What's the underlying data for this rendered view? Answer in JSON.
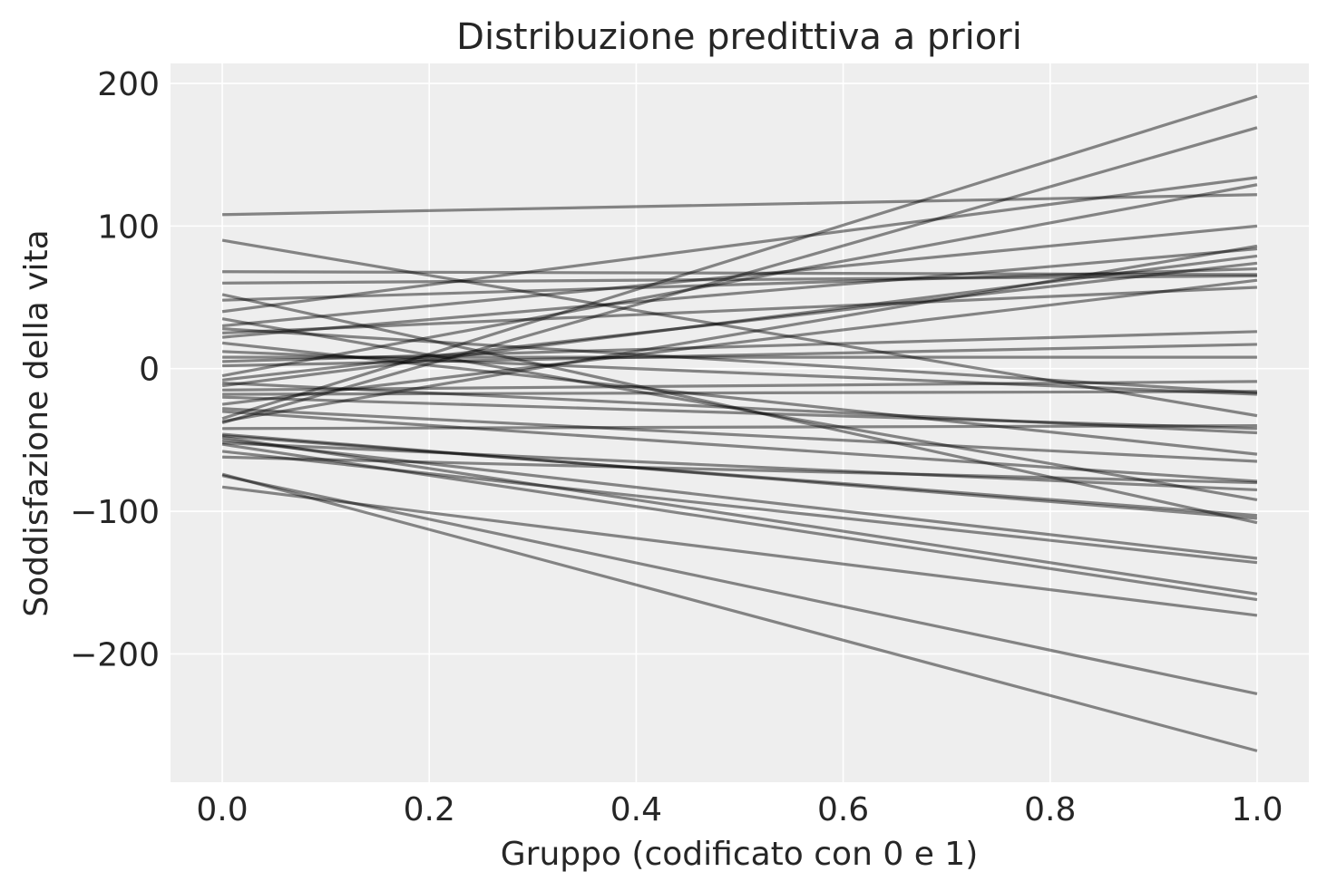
{
  "chart_data": {
    "type": "line",
    "title": "Distribuzione predittiva a priori",
    "xlabel": "Gruppo (codificato con 0 e 1)",
    "ylabel": "Soddisfazione della vita",
    "xlim": [
      -0.05,
      1.05
    ],
    "ylim": [
      -290,
      214
    ],
    "xticks": [
      0.0,
      0.2,
      0.4,
      0.6,
      0.8,
      1.0
    ],
    "xtick_labels": [
      "0.0",
      "0.2",
      "0.4",
      "0.6",
      "0.8",
      "1.0"
    ],
    "yticks": [
      -200,
      -100,
      0,
      100,
      200
    ],
    "ytick_labels": [
      "−200",
      "−100",
      "0",
      "100",
      "200"
    ],
    "grid": true,
    "line_color": "#000000",
    "background_color": "#eeeeee",
    "x": [
      0,
      1
    ],
    "series": [
      {
        "values": [
          108,
          122
        ]
      },
      {
        "values": [
          90,
          -33
        ]
      },
      {
        "values": [
          68,
          66
        ]
      },
      {
        "values": [
          60,
          65
        ]
      },
      {
        "values": [
          52,
          -108
        ]
      },
      {
        "values": [
          48,
          70
        ]
      },
      {
        "values": [
          40,
          134
        ]
      },
      {
        "values": [
          35,
          -92
        ]
      },
      {
        "values": [
          30,
          100
        ]
      },
      {
        "values": [
          28,
          -17
        ]
      },
      {
        "values": [
          25,
          57
        ]
      },
      {
        "values": [
          22,
          84
        ]
      },
      {
        "values": [
          8,
          8
        ]
      },
      {
        "values": [
          5,
          26
        ]
      },
      {
        "values": [
          2,
          17
        ]
      },
      {
        "values": [
          -5,
          129
        ]
      },
      {
        "values": [
          -10,
          -45
        ]
      },
      {
        "values": [
          -12,
          79
        ]
      },
      {
        "values": [
          -15,
          -9
        ]
      },
      {
        "values": [
          -18,
          -16
        ]
      },
      {
        "values": [
          -30,
          -79
        ]
      },
      {
        "values": [
          -35,
          191
        ]
      },
      {
        "values": [
          -38,
          169
        ]
      },
      {
        "values": [
          -37,
          86
        ]
      },
      {
        "values": [
          -42,
          -40
        ]
      },
      {
        "values": [
          -47,
          -103
        ]
      },
      {
        "values": [
          -50,
          -133
        ]
      },
      {
        "values": [
          -52,
          -85
        ]
      },
      {
        "values": [
          -48,
          -158
        ]
      },
      {
        "values": [
          -53,
          -162
        ]
      },
      {
        "values": [
          -75,
          -228
        ]
      },
      {
        "values": [
          -74,
          -268
        ]
      },
      {
        "values": [
          -83,
          -173
        ]
      },
      {
        "values": [
          -62,
          -80
        ]
      },
      {
        "values": [
          -58,
          -136
        ]
      },
      {
        "values": [
          -20,
          -42
        ]
      },
      {
        "values": [
          -8,
          74
        ]
      },
      {
        "values": [
          12,
          -18
        ]
      },
      {
        "values": [
          18,
          -60
        ]
      },
      {
        "values": [
          -25,
          62
        ]
      },
      {
        "values": [
          -46,
          -105
        ]
      },
      {
        "values": [
          -28,
          -65
        ]
      }
    ]
  }
}
